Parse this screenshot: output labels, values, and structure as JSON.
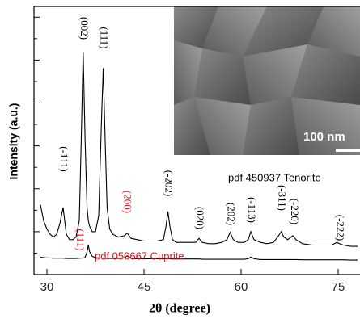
{
  "chart_data": {
    "type": "line",
    "x_label": "2θ (degree)",
    "y_label": "Intensity (a.u.)",
    "xlim": [
      28,
      78.25
    ],
    "ylim": [
      0,
      100
    ],
    "xticks": [
      30,
      45,
      60,
      75
    ],
    "yticks": [
      8,
      16,
      24,
      32,
      40,
      48,
      56,
      64,
      72,
      80,
      88,
      96
    ],
    "x": [
      29,
      29.5,
      30,
      30.5,
      31,
      31.5,
      32,
      32.5,
      33,
      33.5,
      34,
      34.5,
      35,
      35.3,
      35.6,
      35.9,
      36.2,
      36.4,
      36.6,
      37,
      37.5,
      38,
      38.4,
      38.7,
      39,
      39.3,
      39.7,
      40.2,
      41,
      42,
      42.4,
      43,
      44,
      45,
      46,
      47,
      48,
      48.4,
      48.7,
      49,
      49.4,
      50,
      51,
      52,
      53,
      53.5,
      54,
      55,
      56,
      57,
      57.8,
      58.3,
      58.8,
      59.5,
      60.5,
      61.1,
      61.5,
      62,
      63,
      64,
      65,
      65.8,
      66.2,
      66.6,
      67.2,
      68,
      68.5,
      69.5,
      71,
      72.5,
      74,
      74.8,
      75.2,
      75.8,
      77,
      78
    ],
    "series": [
      {
        "name": "pdf 450937  Tenorite",
        "color": "#000000",
        "values": [
          26,
          20,
          17,
          15,
          14,
          15,
          19,
          25,
          15,
          13,
          13,
          14,
          20,
          50,
          83,
          50,
          25,
          20,
          18,
          16,
          16,
          22,
          55,
          77,
          50,
          25,
          17,
          15,
          14,
          14.5,
          15.5,
          13.5,
          13,
          12.5,
          12.5,
          12.5,
          13,
          18,
          23.5,
          18,
          13,
          12,
          12,
          12,
          12,
          13.5,
          12,
          11.5,
          11.5,
          12,
          13,
          15.7,
          13,
          12,
          12,
          13,
          16,
          13,
          12,
          11.5,
          12,
          14.5,
          16,
          14,
          13,
          14.5,
          13,
          11.5,
          11,
          11,
          11,
          12,
          11.5,
          11,
          10.5,
          10.5
        ]
      },
      {
        "name": "pdf 050667 Cuprite",
        "color": "#000000",
        "label_color": "#e0101a",
        "values": [
          6.5,
          6.3,
          6.2,
          6.2,
          6.1,
          6.1,
          6.1,
          6.1,
          6.0,
          6.0,
          6.0,
          6.0,
          6.1,
          6.1,
          6.2,
          6.4,
          8.5,
          11,
          8.5,
          6.8,
          6.3,
          6.2,
          6.2,
          6.1,
          6.1,
          6.0,
          6.0,
          6.0,
          6.0,
          6.3,
          7,
          6.0,
          5.9,
          5.9,
          5.9,
          5.9,
          5.9,
          5.9,
          6.0,
          5.9,
          5.8,
          5.8,
          5.8,
          5.8,
          5.8,
          5.8,
          5.7,
          5.7,
          5.7,
          5.7,
          5.7,
          5.7,
          5.7,
          5.7,
          5.7,
          5.9,
          6.5,
          5.9,
          5.6,
          5.6,
          5.6,
          5.6,
          5.6,
          5.6,
          5.6,
          5.6,
          5.6,
          5.5,
          5.5,
          5.5,
          5.5,
          5.5,
          5.5,
          5.5,
          5.4,
          5.4
        ]
      }
    ],
    "annotations": [
      {
        "text": "(-111)",
        "x": 32.5,
        "color": "#000000"
      },
      {
        "text": "(002)",
        "x": 35.6,
        "color": "#000000"
      },
      {
        "text": "(111)",
        "x": 38.7,
        "color": "#000000"
      },
      {
        "text": "(200)",
        "x": 42.3,
        "color": "#e0101a"
      },
      {
        "text": "(-202)",
        "x": 48.7,
        "color": "#000000"
      },
      {
        "text": "(020)",
        "x": 53.5,
        "color": "#000000"
      },
      {
        "text": "(202)",
        "x": 58.3,
        "color": "#000000"
      },
      {
        "text": "(-113)",
        "x": 61.5,
        "color": "#000000"
      },
      {
        "text": "(-311)",
        "x": 66.2,
        "color": "#000000"
      },
      {
        "text": "(-220)",
        "x": 68.1,
        "color": "#000000"
      },
      {
        "text": "(-222)",
        "x": 75.2,
        "color": "#000000"
      },
      {
        "text": "(111)",
        "x": 35,
        "color": "#e0101a"
      }
    ],
    "inset": {
      "scale_label": "100 nm"
    }
  }
}
